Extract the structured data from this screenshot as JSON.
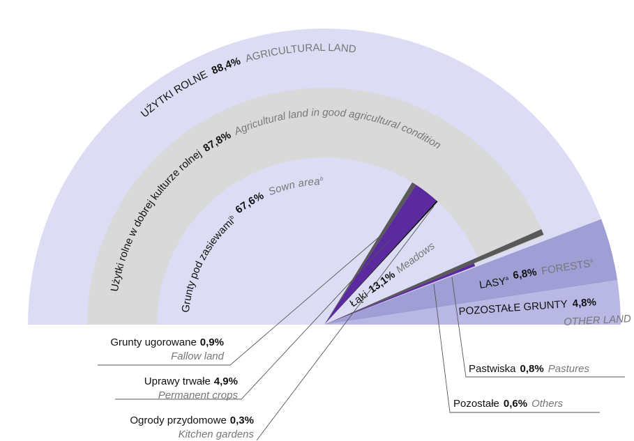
{
  "chart_data": {
    "type": "semi-pie",
    "land": {
      "names": [
        "UŻYTKI ROLNE",
        "LASY",
        "POZOSTAŁE GRUNTY"
      ],
      "names_en": [
        "AGRICULTURAL LAND",
        "FORESTS",
        "OTHER LAND"
      ],
      "footnotes": [
        null,
        "a",
        null
      ],
      "values": [
        88.4,
        6.8,
        4.8
      ],
      "value_labels": [
        "88,4%",
        "6,8%",
        "4,8%"
      ],
      "colors": [
        "#dcdcf5",
        "#a09fd5",
        "#b9b8e4"
      ]
    },
    "good_condition": {
      "name": "Użytki rolne w dobrej kulturze rolnej",
      "name_en": "Agricultural land in good agricultural condition",
      "value": 87.8,
      "value_label": "87,8%",
      "color": "#d9d9d9"
    },
    "agricultural": {
      "names": [
        "Grunty pod zasiewami",
        "Grunty ugorowane",
        "Uprawy trwałe",
        "Ogrody przydomowe",
        "Łąki",
        "Pastwiska",
        "Pozostałe"
      ],
      "names_en": [
        "Sown area",
        "Fallow land",
        "Permanent crops",
        "Kitchen gardens",
        "Meadows",
        "Pastures",
        "Others"
      ],
      "footnotes": [
        "b",
        null,
        null,
        null,
        null,
        null,
        null
      ],
      "values": [
        67.6,
        0.9,
        4.9,
        0.3,
        13.1,
        0.8,
        0.6
      ],
      "value_labels": [
        "67,6%",
        "0,9%",
        "4,9%",
        "0,3%",
        "13,1%",
        "0,8%",
        "0,6%"
      ],
      "colors": [
        "#dcdcf5",
        "#595959",
        "#5b2a9e",
        "#111111",
        "#dcdcf5",
        "#595959",
        "#5b2a9e"
      ]
    }
  }
}
